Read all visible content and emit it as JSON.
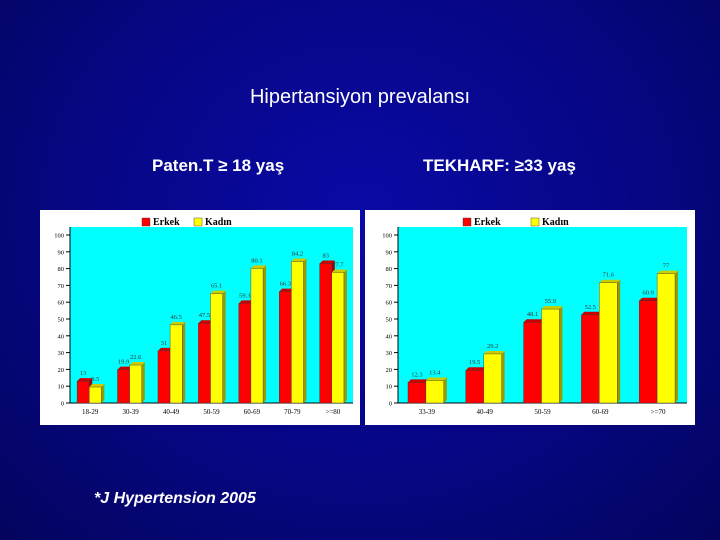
{
  "slide": {
    "title": "Hipertansiyon prevalansı",
    "left_heading": "Paten.T ≥ 18 yaş",
    "right_heading": "TEKHARF: ≥33 yaş",
    "footnote": "*J Hypertension 2005"
  },
  "colors": {
    "background": "#060684",
    "erkek": "#ff0000",
    "kadin": "#ffff00",
    "plot_bg": "#00ffff"
  },
  "chart_data": [
    {
      "type": "bar",
      "categories": [
        "18-29",
        "30-39",
        "40-49",
        "50-59",
        "60-69",
        "70-79",
        ">=80"
      ],
      "series": [
        {
          "name": "Erkek",
          "values": [
            13,
            19.9,
            31,
            47.5,
            59.3,
            66.3,
            83
          ]
        },
        {
          "name": "Kadın",
          "values": [
            9.5,
            22.6,
            46.5,
            65.1,
            80.1,
            84.2,
            77.7
          ]
        }
      ],
      "value_labels": [
        [
          "13",
          "19.9",
          "31",
          "47.5",
          "59.3",
          "66.3",
          "83"
        ],
        [
          "9.5",
          "22.6",
          "46.5",
          "65.1",
          "80.1",
          "84.2",
          "77.7"
        ]
      ],
      "yticks": [
        "0",
        "10",
        "20",
        "30",
        "40",
        "50",
        "60",
        "70",
        "80",
        "90",
        "100"
      ],
      "ylim": [
        0,
        100
      ],
      "legend": "top-center"
    },
    {
      "type": "bar",
      "categories": [
        "33-39",
        "40-49",
        "50-59",
        "60-69",
        ">=70"
      ],
      "series": [
        {
          "name": "Erkek",
          "values": [
            12.3,
            19.5,
            48.1,
            52.5,
            60.9
          ]
        },
        {
          "name": "Kadın",
          "values": [
            13.4,
            29.2,
            55.9,
            71.6,
            77
          ]
        }
      ],
      "value_labels": [
        [
          "12.3",
          "19.5",
          "48.1",
          "52.5",
          "60.9"
        ],
        [
          "13.4",
          "29.2",
          "55.9",
          "71.6",
          "77"
        ]
      ],
      "yticks": [
        "0",
        "10",
        "20",
        "30",
        "40",
        "50",
        "60",
        "70",
        "80",
        "90",
        "100"
      ],
      "ylim": [
        0,
        100
      ],
      "legend": "top-center"
    }
  ]
}
